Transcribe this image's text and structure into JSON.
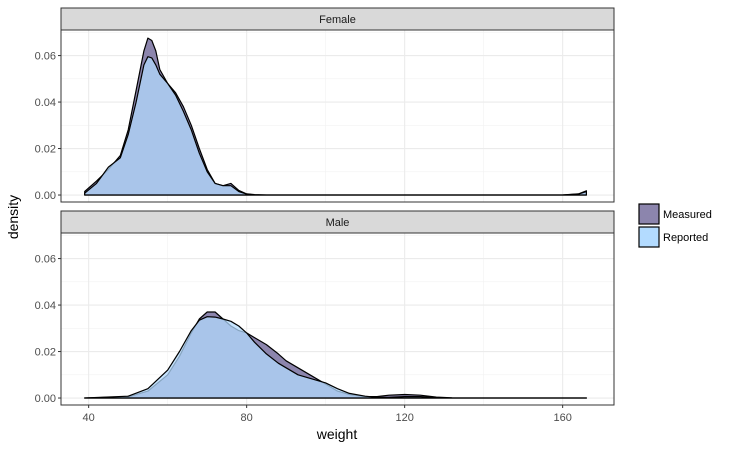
{
  "chart_data": {
    "type": "area",
    "subtype": "faceted density",
    "xlabel": "weight",
    "ylabel": "density",
    "xlim": [
      33,
      173
    ],
    "ylim": [
      -0.003,
      0.071
    ],
    "x_ticks": [
      40,
      80,
      120,
      160
    ],
    "x_tick_labels": [
      "40",
      "80",
      "120",
      "160"
    ],
    "y_ticks": [
      0.0,
      0.02,
      0.04,
      0.06
    ],
    "y_tick_labels": [
      "0.00",
      "0.02",
      "0.04",
      "0.06"
    ],
    "grid": true,
    "legend_position": "right",
    "legend": [
      {
        "label": "Measured",
        "color": "#8c85ad"
      },
      {
        "label": "Reported",
        "color": "#b3dbff"
      }
    ],
    "overlap_color": "#8eacdf",
    "facets": [
      {
        "label": "Female",
        "series": [
          {
            "name": "Measured",
            "x": [
              39,
              42,
              45,
              48,
              50,
              52,
              54,
              55,
              56,
              57,
              58,
              60,
              62,
              64,
              66,
              68,
              70,
              72,
              74,
              76,
              78,
              80,
              82,
              85,
              90,
              100,
              120,
              140,
              160,
              164,
              166
            ],
            "y": [
              0.0015,
              0.006,
              0.011,
              0.017,
              0.028,
              0.045,
              0.062,
              0.0675,
              0.0665,
              0.062,
              0.054,
              0.048,
              0.044,
              0.038,
              0.03,
              0.02,
              0.011,
              0.005,
              0.004,
              0.005,
              0.002,
              0.0005,
              0.0002,
              0.0,
              0.0,
              0.0,
              0.0,
              0.0,
              0.0,
              0.0005,
              0.0018
            ]
          },
          {
            "name": "Reported",
            "x": [
              39,
              42,
              45,
              48,
              50,
              52,
              54,
              55,
              56,
              57,
              58,
              60,
              62,
              64,
              66,
              68,
              70,
              72,
              74,
              76,
              78,
              80,
              82,
              85,
              90,
              100,
              120,
              140,
              160,
              164,
              166
            ],
            "y": [
              0.0008,
              0.005,
              0.012,
              0.016,
              0.026,
              0.04,
              0.056,
              0.0595,
              0.059,
              0.056,
              0.052,
              0.048,
              0.043,
              0.036,
              0.028,
              0.018,
              0.01,
              0.005,
              0.004,
              0.004,
              0.0015,
              0.0004,
              0.0001,
              0.0,
              0.0,
              0.0,
              0.0,
              0.0,
              0.0,
              0.0004,
              0.0015
            ]
          }
        ]
      },
      {
        "label": "Male",
        "series": [
          {
            "name": "Measured",
            "x": [
              39,
              50,
              55,
              60,
              63,
              66,
              68,
              70,
              72,
              74,
              76,
              78,
              80,
              82,
              85,
              88,
              90,
              93,
              96,
              100,
              103,
              106,
              110,
              113,
              116,
              120,
              124,
              128,
              132,
              140,
              166
            ],
            "y": [
              0.0,
              0.0005,
              0.003,
              0.01,
              0.018,
              0.028,
              0.034,
              0.037,
              0.037,
              0.034,
              0.031,
              0.029,
              0.028,
              0.026,
              0.023,
              0.019,
              0.016,
              0.013,
              0.01,
              0.006,
              0.003,
              0.0015,
              0.0006,
              0.0006,
              0.0012,
              0.0015,
              0.0012,
              0.0004,
              0.0001,
              0.0,
              0.0
            ]
          },
          {
            "name": "Reported",
            "x": [
              39,
              50,
              55,
              60,
              63,
              66,
              68,
              70,
              72,
              74,
              76,
              78,
              80,
              82,
              85,
              88,
              90,
              93,
              96,
              100,
              103,
              106,
              110,
              113,
              116,
              120,
              124,
              128,
              132,
              140,
              166
            ],
            "y": [
              0.0,
              0.0008,
              0.004,
              0.012,
              0.02,
              0.029,
              0.0335,
              0.035,
              0.0348,
              0.034,
              0.033,
              0.031,
              0.028,
              0.024,
              0.019,
              0.015,
              0.013,
              0.01,
              0.0085,
              0.0065,
              0.004,
              0.002,
              0.0008,
              0.0003,
              0.0003,
              0.0006,
              0.0006,
              0.0002,
              0.0,
              0.0,
              0.0
            ]
          }
        ]
      }
    ]
  }
}
